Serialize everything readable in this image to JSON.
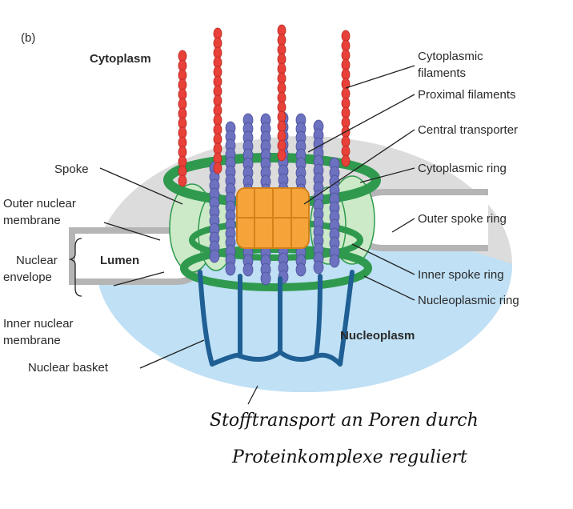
{
  "panel_label": "(b)",
  "labels": {
    "cytoplasm": "Cytoplasm",
    "nucleoplasm": "Nucleoplasm",
    "lumen": "Lumen",
    "spoke": "Spoke",
    "outer_nuclear_membrane": [
      "Outer nuclear",
      "membrane"
    ],
    "nuclear_envelope": [
      "Nuclear",
      "envelope"
    ],
    "inner_nuclear_membrane": [
      "Inner nuclear",
      "membrane"
    ],
    "nuclear_basket": "Nuclear basket",
    "cytoplasmic_filaments": [
      "Cytoplasmic",
      "filaments"
    ],
    "proximal_filaments": "Proximal filaments",
    "central_transporter": "Central transporter",
    "cytoplasmic_ring": "Cytoplasmic ring",
    "outer_spoke_ring": "Outer spoke ring",
    "inner_spoke_ring": "Inner spoke ring",
    "nucleoplasmic_ring": "Nucleoplasmic ring"
  },
  "handwritten_note": [
    "Stofftransport an Poren durch",
    "Proteinkomplexe reguliert"
  ],
  "colors": {
    "cytoplasm_bg": "#dcdcdc",
    "nucleoplasm_bg": "#bfe0f5",
    "cytoplasmic_filament": "#e8413a",
    "proximal_filament": "#6c72c0",
    "central_transporter": "#f5a43a",
    "ring_green": "#2f9a4e",
    "spoke_light_green": "#cdeac8",
    "nuclear_basket": "#1f5f94",
    "membrane_gray": "#b5b5b5"
  }
}
